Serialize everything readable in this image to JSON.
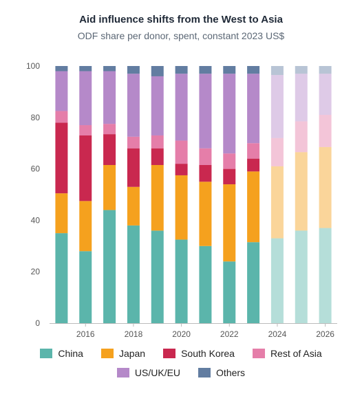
{
  "chart_data": {
    "type": "bar",
    "stacked": true,
    "title": "Aid influence shifts from the West to Asia",
    "subtitle": "ODF share per donor, spent, constant 2023 US$",
    "xlabel": "",
    "ylabel": "",
    "ylim": [
      0,
      100
    ],
    "yticks": [
      "0",
      "20",
      "40",
      "60",
      "80",
      "100"
    ],
    "categories": [
      "2015",
      "2016",
      "2017",
      "2018",
      "2019",
      "2020",
      "2021",
      "2022",
      "2023",
      "2024",
      "2025",
      "2026"
    ],
    "xtick_labels": [
      "2016",
      "2018",
      "2020",
      "2022",
      "2024",
      "2026"
    ],
    "projected_from": "2024",
    "grid": false,
    "legend_position": "bottom",
    "series": [
      {
        "name": "China",
        "color": "#5bb5ab",
        "values": [
          35,
          28,
          44,
          38,
          36,
          32.5,
          30,
          24,
          31.5,
          33,
          36,
          37
        ]
      },
      {
        "name": "Japan",
        "color": "#f5a11e",
        "values": [
          15.5,
          19.5,
          17.5,
          15,
          25.5,
          25,
          25,
          30,
          27.5,
          28,
          30.5,
          31.5
        ]
      },
      {
        "name": "South Korea",
        "color": "#c9284f",
        "values": [
          27.5,
          25.5,
          12,
          15,
          6.5,
          4.5,
          6.5,
          6,
          5,
          0,
          0,
          0
        ]
      },
      {
        "name": "Rest of Asia",
        "color": "#e57ea9",
        "values": [
          4.5,
          4,
          4,
          4.5,
          5,
          9,
          6.5,
          6,
          6,
          11,
          12,
          12.5
        ]
      },
      {
        "name": "US/UK/EU",
        "color": "#b589c9",
        "values": [
          15.5,
          21,
          20.5,
          24.5,
          23,
          26,
          29,
          31,
          27,
          24.5,
          18.5,
          16
        ]
      },
      {
        "name": "Others",
        "color": "#627da1",
        "values": [
          2,
          2,
          2,
          3,
          4,
          3,
          3,
          3,
          3,
          3.5,
          3,
          3
        ]
      }
    ]
  },
  "legend": {
    "rows": [
      [
        "China",
        "Japan",
        "South Korea",
        "Rest of Asia"
      ],
      [
        "US/UK/EU",
        "Others"
      ]
    ]
  }
}
